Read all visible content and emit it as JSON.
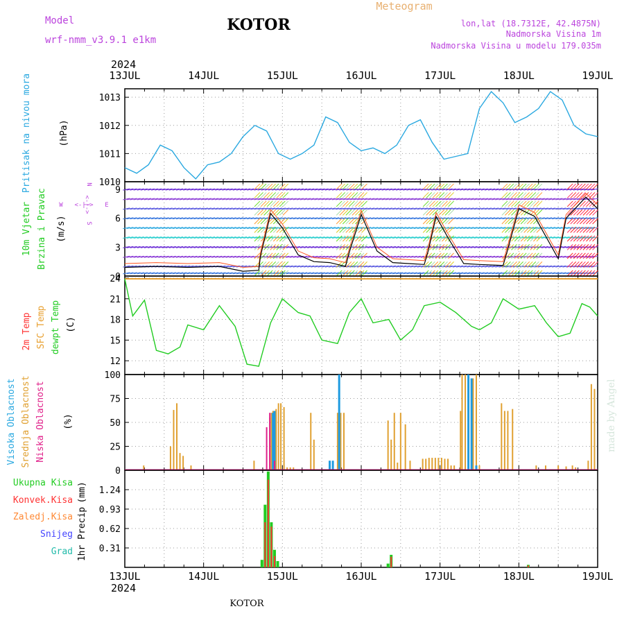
{
  "header": {
    "model_label": "Model",
    "model_name": "wrf-nmm_v3.9.1  e1km",
    "title": "KOTOR",
    "meteogram": "Meteogram",
    "lonlat": "lon,lat (18.7312E, 42.4875N)",
    "elevation": "Nadmorska Visina 1m",
    "model_elevation": "Nadmorska Visina u modelu 179.035m",
    "year": "2024",
    "footer_station": "KOTOR",
    "credit": "made by Angel"
  },
  "colors": {
    "pressure": "#29a8e0",
    "temp2m": "#ff3333",
    "sfc": "#e8a030",
    "dewpt": "#22cc22",
    "vhigh": "#1e9be0",
    "mid": "#e0a030",
    "low": "#e0208a",
    "precip_total": "#22cc22",
    "precip_conv": "#ff3333",
    "precip_ice": "#ff8833",
    "snow": "#4444ff",
    "hail": "#22bbaa",
    "purple_text": "#bb44dd"
  },
  "chart_data": [
    {
      "id": "pressure",
      "type": "line",
      "axis_title": "Pritisak na nivou mora",
      "unit": "(hPa)",
      "x_ticks": [
        "13JUL",
        "14JUL",
        "15JUL",
        "16JUL",
        "17JUL",
        "18JUL",
        "19JUL"
      ],
      "y_ticks": [
        "1010",
        "1011",
        "1012",
        "1013"
      ],
      "ylim": [
        1010,
        1013.3
      ],
      "grid": true,
      "x_days": [
        0,
        0.15,
        0.3,
        0.45,
        0.6,
        0.75,
        0.9,
        1.05,
        1.2,
        1.35,
        1.5,
        1.65,
        1.8,
        1.95,
        2.1,
        2.25,
        2.4,
        2.55,
        2.7,
        2.85,
        3.0,
        3.15,
        3.3,
        3.45,
        3.6,
        3.75,
        3.9,
        4.05,
        4.2,
        4.35,
        4.5,
        4.65,
        4.8,
        4.95,
        5.1,
        5.25,
        5.4,
        5.55,
        5.7,
        5.85,
        6.0
      ],
      "values": [
        1010.5,
        1010.3,
        1010.6,
        1011.3,
        1011.1,
        1010.5,
        1010.1,
        1010.6,
        1010.7,
        1011.0,
        1011.6,
        1012.0,
        1011.8,
        1011.0,
        1010.8,
        1011.0,
        1011.3,
        1012.3,
        1012.1,
        1011.4,
        1011.1,
        1011.2,
        1011.0,
        1011.3,
        1012.0,
        1012.2,
        1011.4,
        1010.8,
        1010.9,
        1011.0,
        1012.6,
        1013.2,
        1012.8,
        1012.1,
        1012.3,
        1012.6,
        1013.2,
        1012.9,
        1012.0,
        1011.7,
        1011.6
      ]
    },
    {
      "id": "wind",
      "type": "line",
      "axis_title": "10m Vjetar",
      "axis_title2": "Brzina i Pravac",
      "unit": "(m/s)",
      "y_ticks": [
        "0",
        "3",
        "6",
        "9"
      ],
      "ylim": [
        0,
        9.8
      ],
      "compass": {
        "n": "N",
        "w": "W",
        "e": "E",
        "s": "S",
        "arrow": "<-|->"
      },
      "x_days": [
        0,
        0.4,
        0.8,
        1.2,
        1.5,
        1.7,
        1.72,
        1.85,
        2.0,
        2.2,
        2.4,
        2.6,
        2.7,
        2.8,
        2.85,
        3.0,
        3.2,
        3.4,
        3.6,
        3.8,
        3.85,
        3.95,
        4.1,
        4.3,
        4.5,
        4.8,
        4.85,
        5.0,
        5.2,
        5.5,
        5.6,
        5.85,
        6.0
      ],
      "values": [
        0.9,
        1.0,
        0.9,
        1.0,
        0.5,
        0.6,
        2.0,
        6.5,
        5.0,
        2.2,
        1.5,
        1.4,
        1.2,
        1.0,
        2.5,
        6.4,
        2.6,
        1.4,
        1.3,
        1.2,
        2.6,
        6.2,
        4.0,
        1.3,
        1.2,
        1.1,
        2.5,
        7.0,
        6.2,
        1.8,
        6.0,
        8.2,
        7.0
      ]
    },
    {
      "id": "temperature",
      "type": "line",
      "axis_title": "2m Temp",
      "axis_title2": "SFC Temp",
      "axis_title3": "dewpt Temp",
      "unit": "(C)",
      "y_ticks": [
        "12",
        "15",
        "18",
        "21",
        "24"
      ],
      "ylim": [
        10,
        24.3
      ],
      "sfc_value": 23.9,
      "x_days": [
        0,
        0.1,
        0.25,
        0.4,
        0.55,
        0.7,
        0.8,
        1.0,
        1.2,
        1.4,
        1.55,
        1.7,
        1.85,
        2.0,
        2.2,
        2.35,
        2.5,
        2.7,
        2.85,
        3.0,
        3.15,
        3.35,
        3.5,
        3.65,
        3.8,
        4.0,
        4.2,
        4.4,
        4.5,
        4.65,
        4.8,
        5.0,
        5.2,
        5.35,
        5.5,
        5.65,
        5.8,
        5.9,
        6.0
      ],
      "values": [
        23.9,
        18.5,
        20.8,
        13.5,
        13.0,
        14.0,
        17.2,
        16.5,
        20.0,
        17.0,
        11.5,
        11.2,
        17.5,
        21.0,
        19.0,
        18.5,
        15.0,
        14.5,
        19.0,
        21.0,
        17.5,
        18.0,
        15.0,
        16.5,
        20.0,
        20.5,
        19.0,
        17.0,
        16.5,
        17.5,
        21.0,
        19.5,
        20.0,
        17.5,
        15.5,
        16.0,
        20.3,
        19.8,
        18.5
      ]
    },
    {
      "id": "clouds",
      "type": "bar",
      "axis_title": "Visoka Oblacnost",
      "axis_title2": "Srednja Oblacnost",
      "axis_title3": "Niska Oblacnost",
      "unit": "(%)",
      "y_ticks": [
        "0",
        "25",
        "50",
        "75",
        "100"
      ],
      "ylim": [
        0,
        100
      ],
      "series": [
        {
          "name": "Srednja",
          "x_days": [
            0.24,
            0.58,
            0.62,
            0.66,
            0.7,
            0.74,
            0.84,
            1.64,
            1.84,
            1.86,
            1.88,
            1.92,
            1.95,
            1.98,
            2.02,
            2.06,
            2.1,
            2.14,
            2.36,
            2.4,
            2.7,
            2.74,
            2.78,
            3.34,
            3.38,
            3.42,
            3.46,
            3.5,
            3.56,
            3.62,
            3.78,
            3.82,
            3.86,
            3.9,
            3.94,
            3.98,
            4.02,
            4.06,
            4.1,
            4.14,
            4.18,
            4.26,
            4.28,
            4.32,
            4.36,
            4.42,
            4.46,
            4.5,
            4.78,
            4.82,
            4.86,
            4.92,
            5.22,
            5.34,
            5.5,
            5.6,
            5.68,
            5.72,
            5.88,
            5.92,
            5.96
          ],
          "values": [
            5,
            25,
            63,
            70,
            18,
            15,
            5,
            10,
            55,
            60,
            62,
            64,
            70,
            70,
            66,
            3,
            3,
            3,
            60,
            32,
            60,
            60,
            60,
            52,
            32,
            60,
            8,
            60,
            48,
            10,
            12,
            12,
            13,
            13,
            13,
            13,
            13,
            12,
            12,
            5,
            5,
            62,
            100,
            100,
            96,
            96,
            100,
            5,
            70,
            62,
            62,
            64,
            5,
            5,
            5,
            4,
            5,
            3,
            10,
            90,
            85
          ]
        },
        {
          "name": "Visoka",
          "x_days": [
            1.88,
            1.9,
            2.6,
            2.64,
            2.72,
            4.36,
            4.4,
            4.46
          ],
          "values": [
            60,
            62,
            10,
            10,
            100,
            100,
            96,
            5
          ]
        },
        {
          "name": "Niska",
          "x_days": [
            1.8,
            1.84,
            1.9
          ],
          "values": [
            45,
            60,
            10
          ]
        }
      ]
    },
    {
      "id": "precip",
      "type": "bar",
      "axis_title": "1hr Precip",
      "unit": "(mm)",
      "y_ticks": [
        "0.31",
        "0.62",
        "0.93",
        "1.24"
      ],
      "ylim": [
        0,
        1.55
      ],
      "legend": [
        "Ukupna Kisa",
        "Konvek.Kisa",
        "Zaledj.Kisa",
        "Snijeg",
        "Grad"
      ],
      "series": [
        {
          "name": "Ukupna Kisa",
          "x_days": [
            1.74,
            1.78,
            1.82,
            1.86,
            1.9,
            1.94,
            3.34,
            3.38,
            5.12
          ],
          "values": [
            0.12,
            1.0,
            1.53,
            0.72,
            0.28,
            0.1,
            0.06,
            0.2,
            0.04
          ]
        },
        {
          "name": "Konvek.Kisa",
          "x_days": [
            1.78,
            1.82,
            1.86,
            1.9,
            3.38,
            5.12
          ],
          "values": [
            0.72,
            1.4,
            0.65,
            0.18,
            0.17,
            0.03
          ]
        }
      ]
    }
  ]
}
